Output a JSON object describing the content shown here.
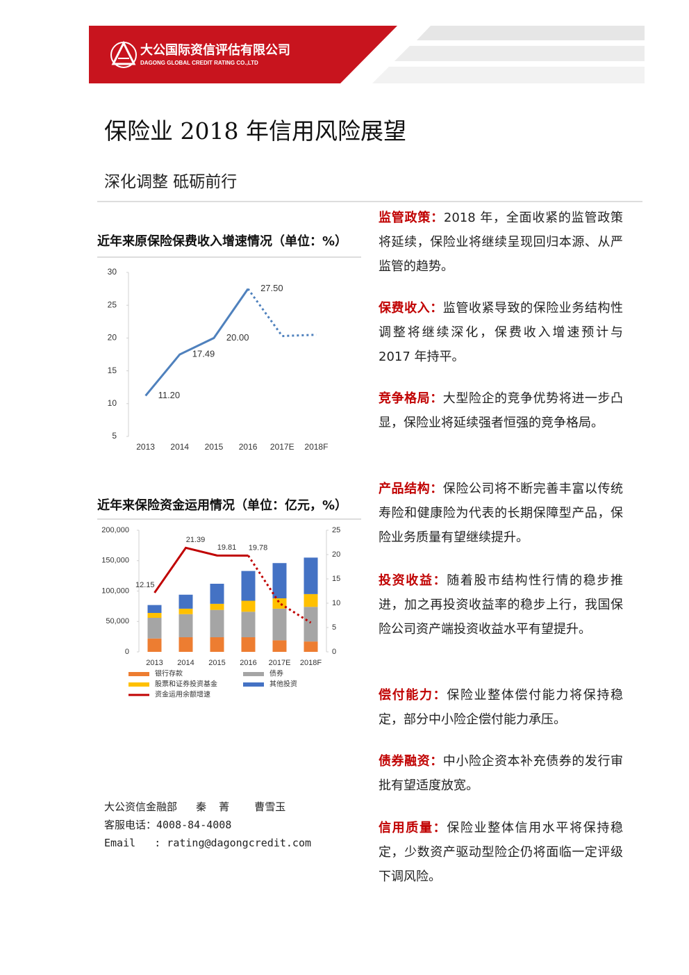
{
  "header": {
    "company_cn": "大公国际资信评估有限公司",
    "company_en": "DAGONG GLOBAL CREDIT RATING CO.,LTD"
  },
  "title": "保险业 2018 年信用风险展望",
  "subtitle": "深化调整 砥砺前行",
  "chart_data": [
    {
      "type": "line",
      "title": "近年来原保险保费收入增速情况（单位：%）",
      "categories": [
        "2013",
        "2014",
        "2015",
        "2016",
        "2017E",
        "2018F"
      ],
      "values": [
        11.2,
        17.49,
        20,
        27.5,
        20.3,
        20.5
      ],
      "value_labels": [
        "11.20",
        "17.49",
        "20.00",
        "27.50",
        null,
        null
      ],
      "dashed_from": 3,
      "color": "#4f81bd",
      "ylim": [
        5,
        30
      ],
      "yticks": [
        5,
        10,
        15,
        20,
        25,
        30
      ]
    },
    {
      "type": "bar",
      "stacked": true,
      "title": "近年来保险资金运用情况（单位：亿元，%）",
      "categories": [
        "2013",
        "2014",
        "2015",
        "2016",
        "2017E",
        "2018F"
      ],
      "series": [
        {
          "name": "银行存款",
          "color": "#ed7d31",
          "values": [
            22000,
            24000,
            24000,
            24000,
            19000,
            17000
          ]
        },
        {
          "name": "债券",
          "color": "#a5a5a5",
          "values": [
            34000,
            38000,
            45000,
            42000,
            52000,
            57000
          ]
        },
        {
          "name": "股票和证券投资基金",
          "color": "#ffc000",
          "values": [
            8000,
            9000,
            10000,
            18000,
            17000,
            21000
          ]
        },
        {
          "name": "其他投资",
          "color": "#4472c4",
          "values": [
            13000,
            23000,
            33000,
            49000,
            58000,
            60000
          ]
        },
        {
          "name": "资金运用余额增速",
          "color": "#c00000",
          "type": "line",
          "axis": "y2",
          "dashed_from": 3,
          "values": [
            12.15,
            21.39,
            19.81,
            19.78,
            10,
            6
          ],
          "value_labels": [
            "12.15",
            "21.39",
            "19.81",
            "19.78",
            null,
            null
          ]
        }
      ],
      "ylim": [
        0,
        200000
      ],
      "yticks": [
        0,
        {
          "value": 50000,
          "label": "50,000"
        },
        {
          "value": 100000,
          "label": "100,000"
        },
        {
          "value": 150000,
          "label": "150,000"
        },
        {
          "value": 200000,
          "label": "200,000"
        }
      ],
      "y2lim": [
        0,
        25
      ],
      "y2ticks": [
        0,
        5,
        10,
        15,
        20,
        25
      ]
    }
  ],
  "contact": [
    "大公资信金融部   秦  菁    曹雪玉",
    "客服电话：4008-84-4008",
    "Email   : rating@dagongcredit.com"
  ],
  "sections": [
    {
      "label": "监管政策：",
      "text": "2018 年，全面收紧的监管政策将延续，保险业将继续呈现回归本源、从严监管的趋势。"
    },
    {
      "label": "保费收入：",
      "text": "监管收紧导致的保险业务结构性调整将继续深化，保费收入增速预计与 2017 年持平。"
    },
    {
      "label": "竞争格局：",
      "text": "大型险企的竞争优势将进一步凸显，保险业将延续强者恒强的竞争格局。"
    },
    {
      "label": "产品结构：",
      "text": "保险公司将不断完善丰富以传统寿险和健康险为代表的长期保障型产品，保险业务质量有望继续提升。"
    },
    {
      "label": "投资收益：",
      "text": "随着股市结构性行情的稳步推进，加之再投资收益率的稳步上行，我国保险公司资产端投资收益水平有望提升。"
    },
    {
      "label": "偿付能力：",
      "text": "保险业整体偿付能力将保持稳定，部分中小险企偿付能力承压。"
    },
    {
      "label": "债券融资：",
      "text": "中小险企资本补充债券的发行审批有望适度放宽。"
    },
    {
      "label": "信用质量：",
      "text": "保险业整体信用水平将保持稳定，少数资产驱动型险企仍将面临一定评级下调风险。"
    }
  ]
}
